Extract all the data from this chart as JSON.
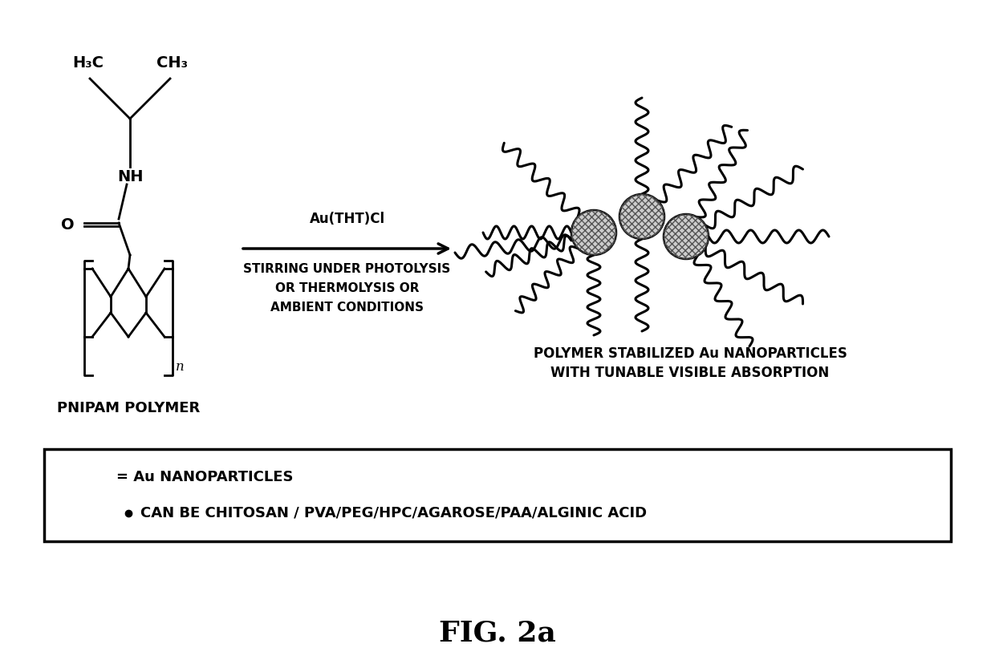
{
  "title": "FIG. 2a",
  "background_color": "#ffffff",
  "legend_text1": "= Au NANOPARTICLES",
  "legend_text2": "CAN BE CHITOSAN / PVA/PEG/HPC/AGAROSE/PAA/ALGINIC ACID",
  "reaction_label1": "Au(THT)Cl",
  "reaction_label2": "STIRRING UNDER PHOTOLYSIS",
  "reaction_label3": "OR THERMOLYSIS OR",
  "reaction_label4": "AMBIENT CONDITIONS",
  "product_label1": "POLYMER STABILIZED Au NANOPARTICLES",
  "product_label2": "WITH TUNABLE VISIBLE ABSORPTION",
  "reactant_label": "PNIPAM POLYMER",
  "h3c_label": "H₃C",
  "ch3_label": "CH₃",
  "nh_label": "NH",
  "o_label": "O",
  "n_label": "n"
}
